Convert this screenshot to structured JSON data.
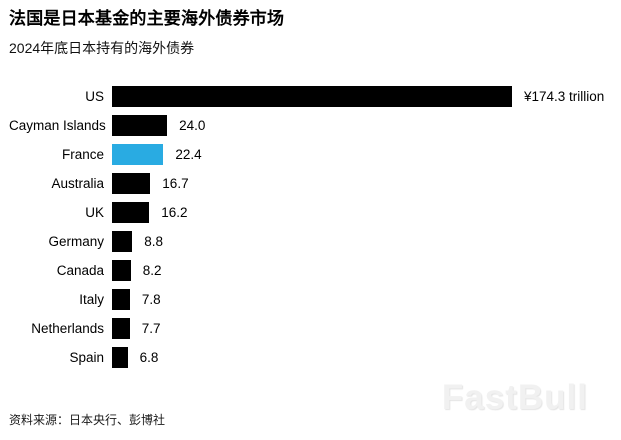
{
  "header": {
    "title": "法国是日本基金的主要海外债券市场",
    "subtitle": "2024年底日本持有的海外债券"
  },
  "chart_data": {
    "type": "bar",
    "orientation": "horizontal",
    "title": "法国是日本基金的主要海外债券市场",
    "subtitle": "2024年底日本持有的海外债券",
    "categories": [
      "US",
      "Cayman Islands",
      "France",
      "Australia",
      "UK",
      "Germany",
      "Canada",
      "Italy",
      "Netherlands",
      "Spain"
    ],
    "values": [
      174.3,
      24.0,
      22.4,
      16.7,
      16.2,
      8.8,
      8.2,
      7.8,
      7.7,
      6.8
    ],
    "value_labels": [
      "¥174.3 trillion",
      "24.0",
      "22.4",
      "16.7",
      "16.2",
      "8.8",
      "8.2",
      "7.8",
      "7.7",
      "6.8"
    ],
    "unit": "¥ trillion",
    "xlim": [
      0,
      174.3
    ],
    "grid": false,
    "legend": "none",
    "bar_color": "#000000",
    "highlight_color": "#29abe2",
    "highlight_index": 2,
    "highlight_category": "France"
  },
  "footer": {
    "source": "资料来源：日本央行、彭博社"
  },
  "watermark": {
    "text": "FastBull"
  }
}
